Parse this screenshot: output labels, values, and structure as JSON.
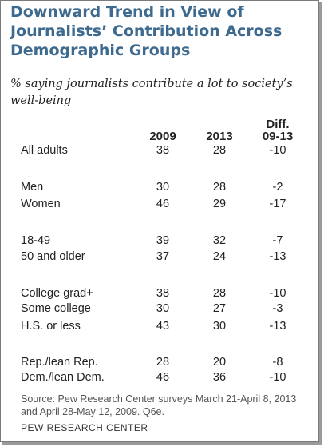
{
  "chart_data": {
    "type": "table",
    "title": "Downward Trend in View of Journalists’ Contribution Across Demographic Groups",
    "subtitle": "% saying journalists contribute a lot to society’s well-being",
    "columns": {
      "c2009": "2009",
      "c2013": "2013",
      "diff_line1": "Diff.",
      "diff_line2": "09-13"
    },
    "rows": [
      {
        "category": "All adults",
        "v2009": 38,
        "v2013": 28,
        "diff": "-10"
      },
      {
        "category": "Men",
        "v2009": 30,
        "v2013": 28,
        "diff": "-2"
      },
      {
        "category": "Women",
        "v2009": 46,
        "v2013": 29,
        "diff": "-17"
      },
      {
        "category": "18-49",
        "v2009": 39,
        "v2013": 32,
        "diff": "-7"
      },
      {
        "category": "50 and older",
        "v2009": 37,
        "v2013": 24,
        "diff": "-13"
      },
      {
        "category": "College grad+",
        "v2009": 38,
        "v2013": 28,
        "diff": "-10"
      },
      {
        "category": "Some college",
        "v2009": 30,
        "v2013": 27,
        "diff": "-3"
      },
      {
        "category": "H.S. or less",
        "v2009": 43,
        "v2013": 30,
        "diff": "-13"
      },
      {
        "category": "Rep./lean Rep.",
        "v2009": 28,
        "v2013": 20,
        "diff": "-8"
      },
      {
        "category": "Dem./lean Dem.",
        "v2009": 46,
        "v2013": 36,
        "diff": "-10"
      }
    ],
    "source": "Source: Pew Research Center surveys March 21-April 8, 2013 and April 28-May 12, 2009. Q6e.",
    "organization": "PEW RESEARCH CENTER"
  },
  "colors": {
    "title": "#3d6a8e",
    "text": "#222222",
    "source": "#555555",
    "border": "#7a7a7a"
  }
}
